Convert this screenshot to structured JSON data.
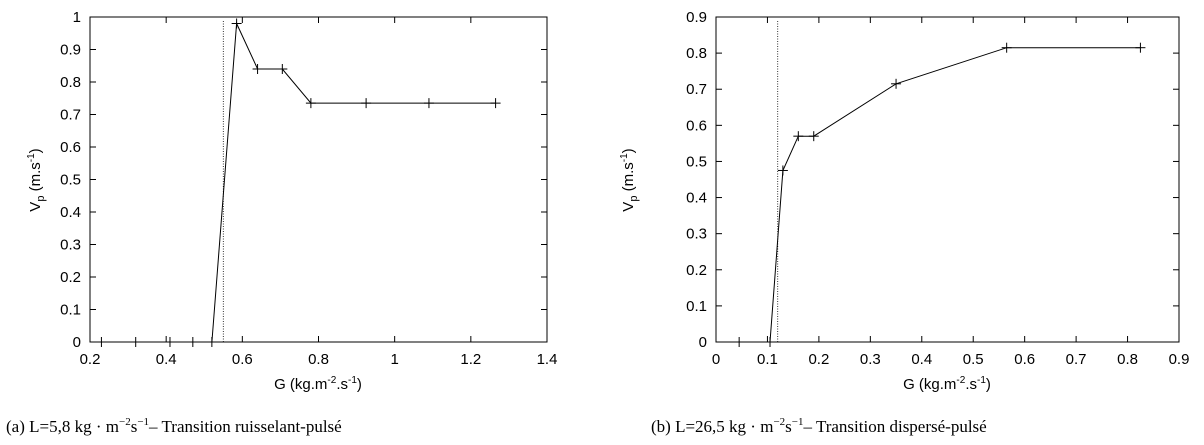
{
  "charts": [
    {
      "caption": {
        "prefix": "(a) L=5,8 kg · m",
        "exponent": "−2",
        "middle": "s",
        "exponent2": "−1",
        "suffix": "– Transition ruisselant-pulsé"
      },
      "xlabel_parts": {
        "main": "G (kg.m",
        "sup1": "-2",
        "mid": ".s",
        "sup2": "-1",
        "end": ")"
      },
      "ylabel_parts": {
        "main": "V",
        "sub": "p",
        "mid": " (m.s",
        "sup": "-1",
        "end": ")"
      }
    },
    {
      "caption": {
        "prefix": "(b) L=26,5 kg · m",
        "exponent": "−2",
        "middle": "s",
        "exponent2": "−1",
        "suffix": "– Transition dispersé-pulsé"
      },
      "xlabel_parts": {
        "main": "G (kg.m",
        "sup1": "-2",
        "mid": ".s",
        "sup2": "-1",
        "end": ")"
      },
      "ylabel_parts": {
        "main": "V",
        "sub": "p",
        "mid": " (m.s",
        "sup": "-1",
        "end": ")"
      }
    }
  ],
  "chart_data": [
    {
      "type": "line",
      "xlabel": "G (kg.m-2.s-1)",
      "ylabel": "Vp (m.s-1)",
      "xlim": [
        0.2,
        1.4
      ],
      "ylim": [
        0,
        1
      ],
      "xticks": [
        "0.2",
        "0.4",
        "0.6",
        "0.8",
        "1",
        "1.2",
        "1.4"
      ],
      "yticks": [
        "0",
        "0.1",
        "0.2",
        "0.3",
        "0.4",
        "0.5",
        "0.6",
        "0.7",
        "0.8",
        "0.9",
        "1"
      ],
      "xtick_values": [
        0.2,
        0.4,
        0.6,
        0.8,
        1.0,
        1.2,
        1.4
      ],
      "ytick_values": [
        0,
        0.1,
        0.2,
        0.3,
        0.4,
        0.5,
        0.6,
        0.7,
        0.8,
        0.9,
        1.0
      ],
      "series": [
        {
          "x": [
            0.23,
            0.32,
            0.41,
            0.47,
            0.52,
            0.585,
            0.64,
            0.705,
            0.78,
            0.925,
            1.09,
            1.265
          ],
          "y": [
            0,
            0,
            0,
            0,
            0,
            0.98,
            0.84,
            0.84,
            0.735,
            0.735,
            0.735,
            0.735
          ]
        }
      ],
      "vline_x": 0.55,
      "grid": false,
      "legend": false
    },
    {
      "type": "line",
      "xlabel": "G (kg.m-2.s-1)",
      "ylabel": "Vp (m.s-1)",
      "xlim": [
        0,
        0.9
      ],
      "ylim": [
        0,
        0.9
      ],
      "xticks": [
        "0",
        "0.1",
        "0.2",
        "0.3",
        "0.4",
        "0.5",
        "0.6",
        "0.7",
        "0.8",
        "0.9"
      ],
      "yticks": [
        "0",
        "0.1",
        "0.2",
        "0.3",
        "0.4",
        "0.5",
        "0.6",
        "0.7",
        "0.8",
        "0.9"
      ],
      "xtick_values": [
        0,
        0.1,
        0.2,
        0.3,
        0.4,
        0.5,
        0.6,
        0.7,
        0.8,
        0.9
      ],
      "ytick_values": [
        0,
        0.1,
        0.2,
        0.3,
        0.4,
        0.5,
        0.6,
        0.7,
        0.8,
        0.9
      ],
      "series": [
        {
          "x": [
            0.045,
            0.105,
            0.13,
            0.16,
            0.19,
            0.35,
            0.565,
            0.825
          ],
          "y": [
            0,
            0,
            0.475,
            0.57,
            0.57,
            0.715,
            0.815,
            0.815
          ]
        }
      ],
      "vline_x": 0.12,
      "grid": false,
      "legend": false
    }
  ]
}
